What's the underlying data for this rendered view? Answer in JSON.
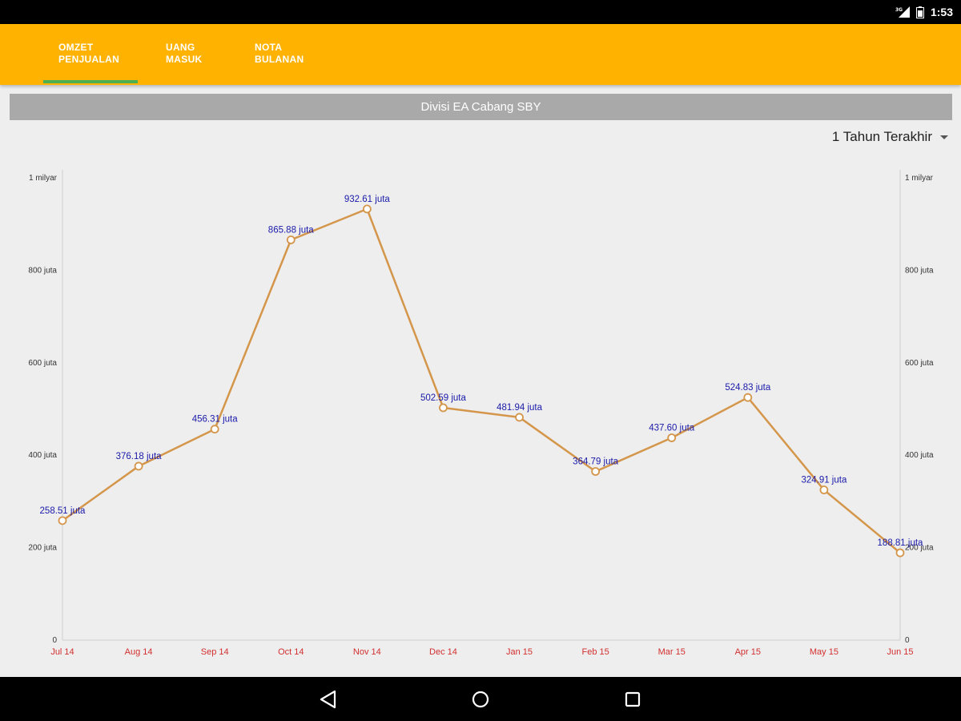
{
  "status_bar": {
    "time": "1:53",
    "network_label": "3G"
  },
  "tabs": [
    {
      "label": "OMZET\nPENJUALAN",
      "active": true
    },
    {
      "label": "UANG\nMASUK",
      "active": false
    },
    {
      "label": "NOTA\nBULANAN",
      "active": false
    }
  ],
  "division_title": "Divisi EA Cabang SBY",
  "period": {
    "selected": "1 Tahun Terakhir"
  },
  "colors": {
    "app_bar": "#ffb300",
    "tab_indicator": "#4caf50",
    "line": "#d4964a",
    "value_label": "#1a1aaa",
    "x_tick": "#d32f2f"
  },
  "chart_data": {
    "type": "line",
    "categories": [
      "Jul 14",
      "Aug 14",
      "Sep 14",
      "Oct 14",
      "Nov 14",
      "Dec 14",
      "Jan 15",
      "Feb 15",
      "Mar 15",
      "Apr 15",
      "May 15",
      "Jun 15"
    ],
    "values": [
      258.51,
      376.18,
      456.31,
      865.88,
      932.61,
      502.59,
      481.94,
      364.79,
      437.6,
      524.83,
      324.91,
      188.81
    ],
    "value_labels": [
      "258.51 juta",
      "376.18 juta",
      "456.31 juta",
      "865.88 juta",
      "932.61 juta",
      "502.59 juta",
      "481.94 juta",
      "364.79 juta",
      "437.60 juta",
      "524.83 juta",
      "324.91 juta",
      "188.81 juta"
    ],
    "unit": "juta",
    "ylim": [
      0,
      1000
    ],
    "y_ticks": [
      0,
      200,
      400,
      600,
      800,
      1000
    ],
    "y_tick_labels": [
      "0",
      "200 juta",
      "400 juta",
      "600 juta",
      "800 juta",
      "1 milyar"
    ],
    "y_axis_both_sides": true,
    "grid": false,
    "markers": "hollow-circle"
  }
}
